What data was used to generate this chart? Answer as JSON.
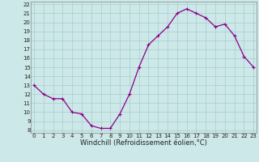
{
  "x": [
    0,
    1,
    2,
    3,
    4,
    5,
    6,
    7,
    8,
    9,
    10,
    11,
    12,
    13,
    14,
    15,
    16,
    17,
    18,
    19,
    20,
    21,
    22,
    23
  ],
  "y": [
    13,
    12,
    11.5,
    11.5,
    10,
    9.8,
    8.5,
    8.2,
    8.2,
    9.8,
    12,
    15,
    17.5,
    18.5,
    19.5,
    21,
    21.5,
    21,
    20.5,
    19.5,
    19.8,
    18.5,
    16.2,
    15
  ],
  "line_color": "#8b008b",
  "marker": "+",
  "markersize": 3,
  "markeredgewidth": 0.8,
  "linewidth": 0.9,
  "bg_color": "#cce8e8",
  "grid_color": "#aacccc",
  "xlabel": "Windchill (Refroidissement éolien,°C)",
  "xlabel_fontsize": 6.0,
  "tick_fontsize": 5.0,
  "ytick_min": 8,
  "ytick_max": 22,
  "xtick_min": 0,
  "xtick_max": 23
}
